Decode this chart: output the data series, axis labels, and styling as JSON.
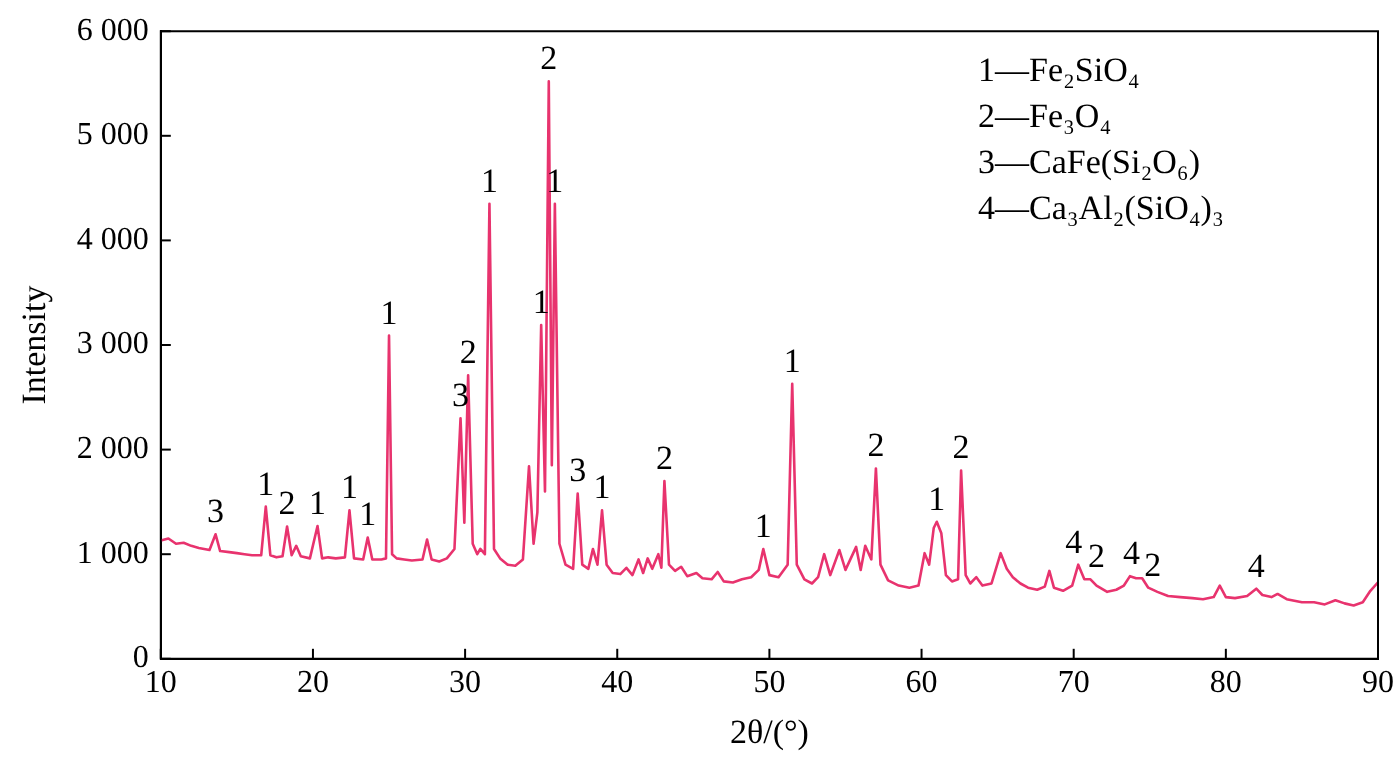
{
  "chart_data": {
    "type": "line",
    "xlabel": "2θ/(°)",
    "ylabel": "Intensity",
    "xlim": [
      10,
      90
    ],
    "xticks": [
      10,
      20,
      30,
      40,
      50,
      60,
      70,
      80,
      90
    ],
    "ylim": [
      0,
      6000
    ],
    "yticks": [
      0,
      {
        "value": 1000,
        "label": "1 000"
      },
      {
        "value": 2000,
        "label": "2 000"
      },
      {
        "value": 3000,
        "label": "3 000"
      },
      {
        "value": 4000,
        "label": "4 000"
      },
      {
        "value": 5000,
        "label": "5 000"
      },
      {
        "value": 6000,
        "label": "6 000"
      }
    ],
    "marker": "none",
    "line_style": "solid",
    "series": [
      {
        "color": "#e8336e",
        "x": [
          10.0,
          10.5,
          11,
          11.5,
          12,
          12.5,
          13.2,
          13.6,
          13.9,
          14.5,
          15,
          15.5,
          16,
          16.6,
          16.9,
          17.2,
          17.6,
          18.0,
          18.3,
          18.6,
          18.9,
          19.2,
          19.8,
          20.3,
          20.6,
          21,
          21.5,
          22.1,
          22.4,
          22.7,
          23.3,
          23.6,
          23.9,
          24.5,
          24.8,
          25.0,
          25.2,
          25.5,
          26,
          26.5,
          27.2,
          27.5,
          27.8,
          28.3,
          28.8,
          29.3,
          29.7,
          29.95,
          30.2,
          30.5,
          30.8,
          31.0,
          31.3,
          31.6,
          31.9,
          32.3,
          32.8,
          33.3,
          33.8,
          34.2,
          34.5,
          34.75,
          35.0,
          35.25,
          35.5,
          35.7,
          35.9,
          36.2,
          36.6,
          37.1,
          37.4,
          37.7,
          38.1,
          38.4,
          38.7,
          39.0,
          39.3,
          39.7,
          40.2,
          40.6,
          41.0,
          41.4,
          41.7,
          42.0,
          42.3,
          42.7,
          42.9,
          43.1,
          43.4,
          43.8,
          44.2,
          44.6,
          45.2,
          45.6,
          46.2,
          46.6,
          47,
          47.6,
          48.2,
          48.8,
          49.3,
          49.6,
          50.0,
          50.6,
          51.2,
          51.5,
          51.8,
          52.3,
          52.8,
          53.2,
          53.6,
          54.0,
          54.6,
          55.0,
          55.7,
          56.0,
          56.3,
          56.7,
          57.0,
          57.3,
          57.8,
          58.5,
          59.2,
          59.8,
          60.2,
          60.5,
          60.8,
          61.0,
          61.3,
          61.6,
          62.0,
          62.4,
          62.6,
          62.9,
          63.2,
          63.6,
          64.0,
          64.6,
          65.2,
          65.6,
          66.0,
          66.5,
          67,
          67.6,
          68.1,
          68.4,
          68.7,
          69.3,
          69.9,
          70.3,
          70.7,
          71.1,
          71.5,
          72.2,
          72.8,
          73.3,
          73.7,
          74.1,
          74.5,
          74.9,
          75.5,
          76.2,
          77,
          77.8,
          78.5,
          79.2,
          79.6,
          80.0,
          80.6,
          81.4,
          82.0,
          82.4,
          83.0,
          83.4,
          84,
          85,
          85.8,
          86.5,
          87.2,
          87.8,
          88.4,
          89.0,
          89.5,
          90.0
        ],
        "values": [
          1130,
          1150,
          1100,
          1110,
          1080,
          1060,
          1040,
          1190,
          1030,
          1020,
          1010,
          1000,
          990,
          990,
          1455,
          990,
          970,
          980,
          1265,
          990,
          1080,
          980,
          960,
          1270,
          960,
          970,
          960,
          970,
          1420,
          960,
          950,
          1160,
          950,
          950,
          960,
          3090,
          1000,
          960,
          950,
          940,
          950,
          1140,
          950,
          930,
          960,
          1050,
          2300,
          1300,
          2710,
          1100,
          1000,
          1050,
          1000,
          4350,
          1050,
          960,
          900,
          890,
          950,
          1840,
          1100,
          1400,
          3190,
          1600,
          5520,
          1850,
          4350,
          1100,
          900,
          860,
          1580,
          900,
          860,
          1050,
          900,
          1420,
          900,
          820,
          810,
          870,
          800,
          950,
          820,
          960,
          860,
          1000,
          870,
          1700,
          900,
          840,
          880,
          790,
          820,
          770,
          760,
          830,
          740,
          730,
          760,
          780,
          850,
          1050,
          800,
          780,
          900,
          2630,
          900,
          760,
          720,
          780,
          1000,
          800,
          1040,
          850,
          1070,
          850,
          1080,
          950,
          1820,
          900,
          750,
          700,
          680,
          700,
          1010,
          900,
          1250,
          1310,
          1200,
          800,
          740,
          760,
          1800,
          800,
          720,
          780,
          700,
          720,
          1010,
          860,
          780,
          720,
          680,
          660,
          690,
          840,
          680,
          650,
          700,
          900,
          760,
          760,
          700,
          640,
          660,
          700,
          790,
          770,
          770,
          680,
          640,
          600,
          590,
          580,
          570,
          590,
          700,
          590,
          580,
          600,
          670,
          610,
          590,
          620,
          570,
          540,
          540,
          520,
          560,
          530,
          510,
          540,
          650,
          730
        ]
      }
    ],
    "annotations": [
      "1—Fe₂SiO₄",
      "2—Fe₃O₄",
      "3—CaFe(Si₂O₆)",
      "4—Ca₃Al₂(SiO₄)₃",
      {
        "text": "3",
        "x": 13.6,
        "y": 1190
      },
      {
        "text": "1",
        "x": 16.9,
        "y": 1455
      },
      {
        "text": "2",
        "x": 18.3,
        "y": 1265
      },
      {
        "text": "1",
        "x": 20.3,
        "y": 1270
      },
      {
        "text": "1",
        "x": 22.4,
        "y": 1420
      },
      {
        "text": "1",
        "x": 23.6,
        "y": 1160
      },
      {
        "text": "1",
        "x": 25.0,
        "y": 3090
      },
      {
        "text": "3",
        "x": 29.7,
        "y": 2300
      },
      {
        "text": "2",
        "x": 30.2,
        "y": 2710
      },
      {
        "text": "1",
        "x": 31.6,
        "y": 4350
      },
      {
        "text": "1",
        "x": 35.0,
        "y": 3190
      },
      {
        "text": "2",
        "x": 35.5,
        "y": 5520
      },
      {
        "text": "1",
        "x": 35.9,
        "y": 4350
      },
      {
        "text": "3",
        "x": 37.4,
        "y": 1580
      },
      {
        "text": "1",
        "x": 39.0,
        "y": 1420
      },
      {
        "text": "2",
        "x": 43.1,
        "y": 1700
      },
      {
        "text": "1",
        "x": 49.6,
        "y": 1050
      },
      {
        "text": "1",
        "x": 51.5,
        "y": 2630
      },
      {
        "text": "2",
        "x": 57.0,
        "y": 1820
      },
      {
        "text": "1",
        "x": 61.0,
        "y": 1310
      },
      {
        "text": "2",
        "x": 62.6,
        "y": 1800
      },
      {
        "text": "4",
        "x": 70.0,
        "y": 900
      },
      {
        "text": "2",
        "x": 71.5,
        "y": 760
      },
      {
        "text": "4",
        "x": 73.8,
        "y": 790
      },
      {
        "text": "2",
        "x": 75.2,
        "y": 680
      },
      {
        "text": "4",
        "x": 82.0,
        "y": 670
      }
    ]
  }
}
